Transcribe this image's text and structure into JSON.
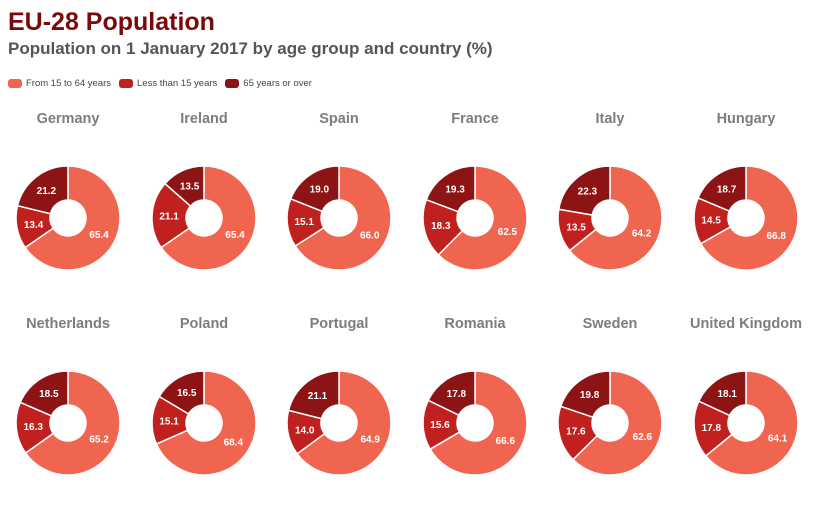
{
  "header": {
    "title": "EU-28 Population",
    "subtitle": "Population on 1 January 2017 by age group and country (%)"
  },
  "legend": [
    {
      "label": "From 15 to 64 years",
      "color": "#f0654f"
    },
    {
      "label": "Less than 15 years",
      "color": "#c0201e"
    },
    {
      "label": "65 years or over",
      "color": "#8c1414"
    }
  ],
  "chart_data": {
    "type": "pie",
    "variant": "donut",
    "series_names": [
      "From 15 to 64 years",
      "Less than 15 years",
      "65 years or over"
    ],
    "colors": [
      "#f0654f",
      "#c0201e",
      "#8c1414"
    ],
    "countries": [
      {
        "name": "Germany",
        "values": [
          65.4,
          13.4,
          21.2
        ]
      },
      {
        "name": "Ireland",
        "values": [
          65.4,
          21.1,
          13.5
        ]
      },
      {
        "name": "Spain",
        "values": [
          66.0,
          15.1,
          19.0
        ]
      },
      {
        "name": "France",
        "values": [
          62.5,
          18.3,
          19.3
        ]
      },
      {
        "name": "Italy",
        "values": [
          64.2,
          13.5,
          22.3
        ]
      },
      {
        "name": "Hungary",
        "values": [
          66.8,
          14.5,
          18.7
        ]
      },
      {
        "name": "Netherlands",
        "values": [
          65.2,
          16.3,
          18.5
        ]
      },
      {
        "name": "Poland",
        "values": [
          68.4,
          15.1,
          16.5
        ]
      },
      {
        "name": "Portugal",
        "values": [
          64.9,
          14.0,
          21.1
        ]
      },
      {
        "name": "Romania",
        "values": [
          66.6,
          15.6,
          17.8
        ]
      },
      {
        "name": "Sweden",
        "values": [
          62.6,
          17.6,
          19.8
        ]
      },
      {
        "name": "United Kingdom",
        "values": [
          64.1,
          17.8,
          18.1
        ]
      }
    ]
  }
}
